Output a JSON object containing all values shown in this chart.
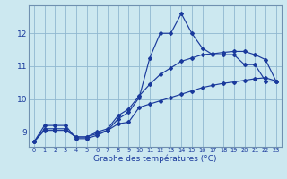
{
  "title": "Graphe des températures (°C)",
  "bg_color": "#cce8f0",
  "line_color": "#1a3a9c",
  "grid_color": "#90b8d0",
  "hours": [
    0,
    1,
    2,
    3,
    4,
    5,
    6,
    7,
    8,
    9,
    10,
    11,
    12,
    13,
    14,
    15,
    16,
    17,
    18,
    19,
    20,
    21,
    22,
    23
  ],
  "temp_actual": [
    8.7,
    9.2,
    9.2,
    9.2,
    8.8,
    8.8,
    8.9,
    9.05,
    9.4,
    9.6,
    10.05,
    11.25,
    12.0,
    12.0,
    12.6,
    12.0,
    11.55,
    11.35,
    11.35,
    11.35,
    11.05,
    11.05,
    10.55,
    10.55
  ],
  "temp_min": [
    8.7,
    9.05,
    9.05,
    9.05,
    8.85,
    8.85,
    8.95,
    9.05,
    9.25,
    9.3,
    9.75,
    9.85,
    9.95,
    10.05,
    10.15,
    10.25,
    10.35,
    10.42,
    10.48,
    10.52,
    10.57,
    10.62,
    10.65,
    10.55
  ],
  "temp_max": [
    8.7,
    9.1,
    9.1,
    9.1,
    8.85,
    8.85,
    9.0,
    9.1,
    9.5,
    9.7,
    10.1,
    10.45,
    10.75,
    10.95,
    11.15,
    11.25,
    11.35,
    11.38,
    11.42,
    11.45,
    11.45,
    11.35,
    11.2,
    10.55
  ],
  "ylim": [
    8.55,
    12.85
  ],
  "yticks": [
    9,
    10,
    11,
    12
  ],
  "xlim": [
    -0.5,
    23.5
  ],
  "figsize": [
    3.2,
    2.0
  ],
  "dpi": 100
}
